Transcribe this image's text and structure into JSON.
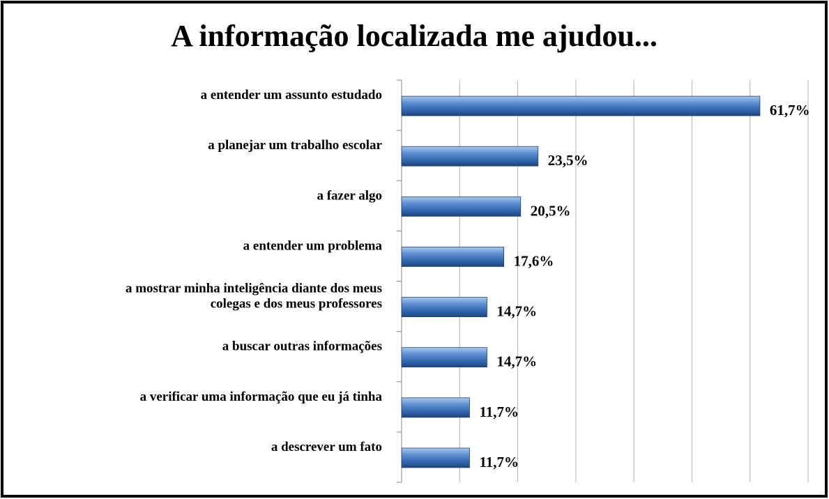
{
  "chart_data": {
    "type": "hbar",
    "title": "A informação localizada me ajudou...",
    "categories": [
      "a entender um assunto estudado",
      "a planejar um trabalho escolar",
      "a fazer algo",
      "a entender  um problema",
      "a mostrar minha inteligência diante dos meus\ncolegas e dos meus professores",
      "a buscar outras informações",
      "a verificar uma informação que eu já tinha",
      "a descrever um fato"
    ],
    "values": [
      61.7,
      23.5,
      20.5,
      17.6,
      14.7,
      14.7,
      11.7,
      11.7
    ],
    "value_labels": [
      "61,7%",
      "23,5%",
      "20,5%",
      "17,6%",
      "14,7%",
      "14,7%",
      "11,7%",
      "11,7%"
    ],
    "color": "#3f74b8",
    "xlim": [
      0,
      70
    ],
    "xticks": [
      0,
      10,
      20,
      30,
      40,
      50,
      60,
      70
    ],
    "grid": true
  }
}
